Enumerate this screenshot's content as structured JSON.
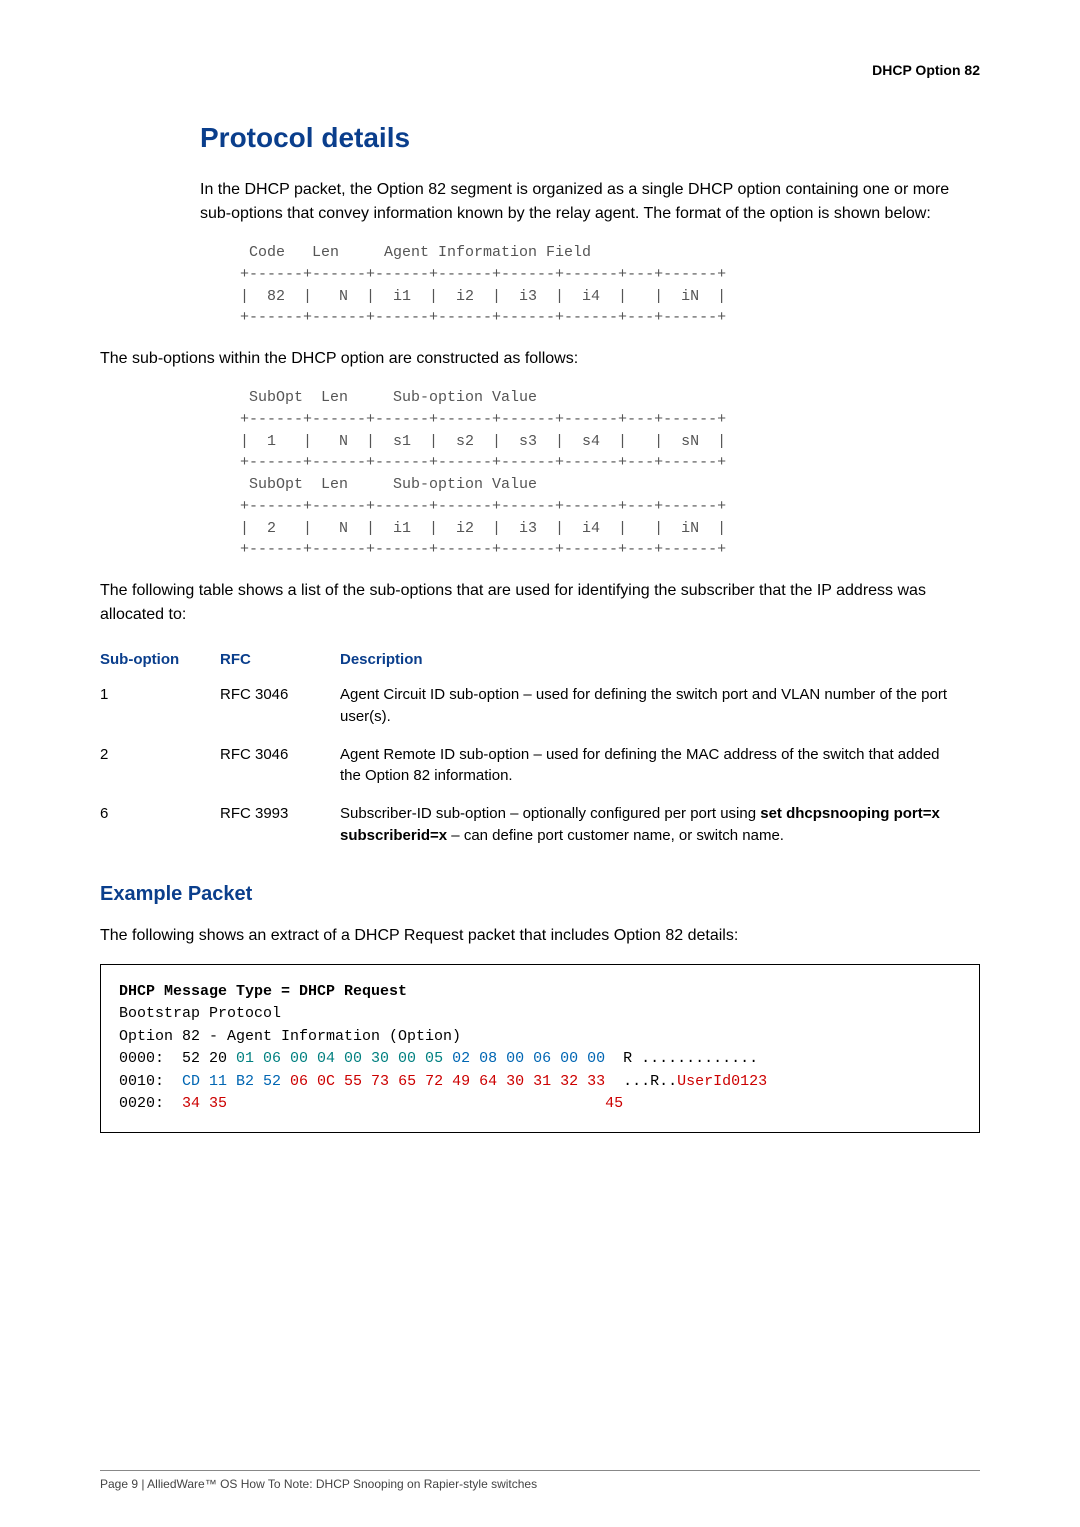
{
  "header": {
    "right": "DHCP Option 82"
  },
  "section": {
    "title": "Protocol details"
  },
  "para1": "In the DHCP packet, the Option 82 segment is organized as a single DHCP option containing one or more sub-options that convey information known by the relay agent. The format of the option is shown below:",
  "ascii1": " Code   Len     Agent Information Field\n+------+------+------+------+------+------+---+------+\n|  82  |   N  |  i1  |  i2  |  i3  |  i4  |   |  iN  |\n+------+------+------+------+------+------+---+------+",
  "para2": "The sub-options within the DHCP option are constructed as follows:",
  "ascii2": " SubOpt  Len     Sub-option Value\n+------+------+------+------+------+------+---+------+\n|  1   |   N  |  s1  |  s2  |  s3  |  s4  |   |  sN  |\n+------+------+------+------+------+------+---+------+\n SubOpt  Len     Sub-option Value\n+------+------+------+------+------+------+---+------+\n|  2   |   N  |  i1  |  i2  |  i3  |  i4  |   |  iN  |\n+------+------+------+------+------+------+---+------+",
  "para3": "The following table shows a list of the sub-options that are used for identifying the subscriber that the IP address was allocated to:",
  "table": {
    "headers": [
      "Sub-option",
      "RFC",
      "Description"
    ],
    "rows": [
      {
        "sub": "1",
        "rfc": "RFC 3046",
        "desc": "Agent Circuit ID sub-option – used for defining the switch port and VLAN number of the port user(s)."
      },
      {
        "sub": "2",
        "rfc": "RFC 3046",
        "desc": "Agent Remote ID sub-option – used for defining the MAC address of the switch that added the Option 82 information."
      },
      {
        "sub": "6",
        "rfc": "RFC 3993",
        "desc_pre": "Subscriber-ID sub-option – optionally configured per port using ",
        "desc_cmd": "set dhcpsnooping port=x subscriberid=x",
        "desc_post": " – can define port customer name, or switch name."
      }
    ]
  },
  "subsection": {
    "title": "Example Packet"
  },
  "para4": "The following shows an extract of a DHCP Request packet that includes Option 82 details:",
  "packet": {
    "line1": "DHCP Message Type = DHCP Request",
    "line2": "Bootstrap Protocol",
    "line3": "Option 82 - Agent Information (Option)",
    "l4a": "0000:  52 20 ",
    "l4b": "01 06 00 04 00 30 00 05 ",
    "l4c": "02 08 00 06 00 00",
    "l4d": "  R .............",
    "l5a": "0010:  ",
    "l5b": "CD 11 B2 52 ",
    "l5c": "06 0C 55 73 65 72 49 64 30 31 32 33",
    "l5d": "  ...R..",
    "l5e": "UserId0123",
    "l6a": "0020:  ",
    "l6b": "34 35",
    "l6c": "                                          ",
    "l6d": "45"
  },
  "footer": "Page 9 | AlliedWare™ OS How To Note: DHCP Snooping on Rapier-style switches",
  "colors": {
    "heading": "#0a3e8c",
    "ascii": "#555555",
    "teal": "#008080",
    "red": "#cc0000",
    "blue": "#0066b3",
    "border": "#000000",
    "footer_rule": "#888888"
  }
}
